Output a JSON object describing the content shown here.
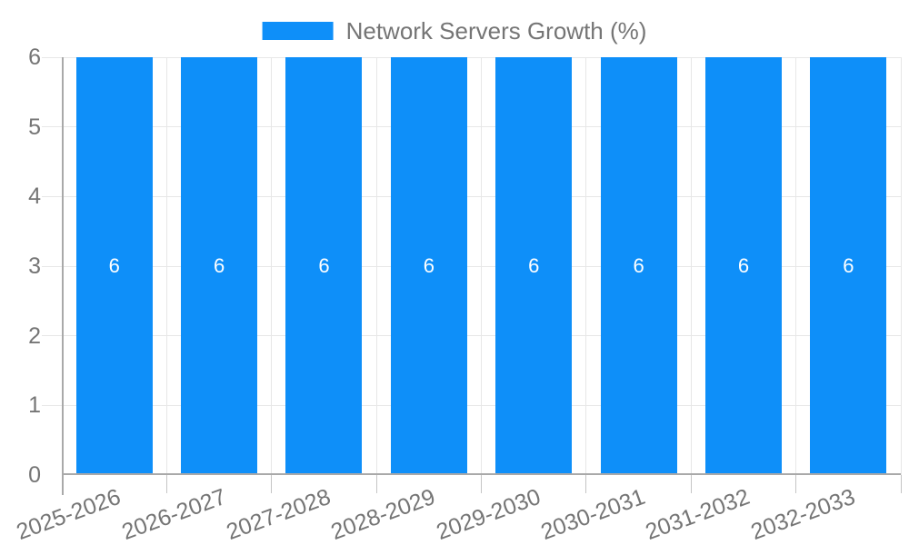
{
  "legend": {
    "label": "Network Servers Growth (%)"
  },
  "colors": {
    "bar": "#0e8ff9",
    "bar_label": "#ffffff",
    "grid": "#e7e7e7",
    "axis": "#a9a9a9",
    "tick": "#c5c5c5",
    "text": "#757575",
    "background": "#ffffff"
  },
  "chart_data": {
    "type": "bar",
    "title": "Network Servers Growth (%)",
    "categories": [
      "2025-2026",
      "2026-2027",
      "2027-2028",
      "2028-2029",
      "2029-2030",
      "2030-2031",
      "2031-2032",
      "2032-2033"
    ],
    "series": [
      {
        "name": "Network Servers Growth (%)",
        "values": [
          6,
          6,
          6,
          6,
          6,
          6,
          6,
          6
        ]
      }
    ],
    "bar_value_labels": [
      "6",
      "6",
      "6",
      "6",
      "6",
      "6",
      "6",
      "6"
    ],
    "xlabel": "",
    "ylabel": "",
    "ylim": [
      0,
      6
    ],
    "yticks": [
      0,
      1,
      2,
      3,
      4,
      5,
      6
    ],
    "grid": "on",
    "legend_position": "top-center",
    "x_tick_label_rotation_deg": -20
  }
}
